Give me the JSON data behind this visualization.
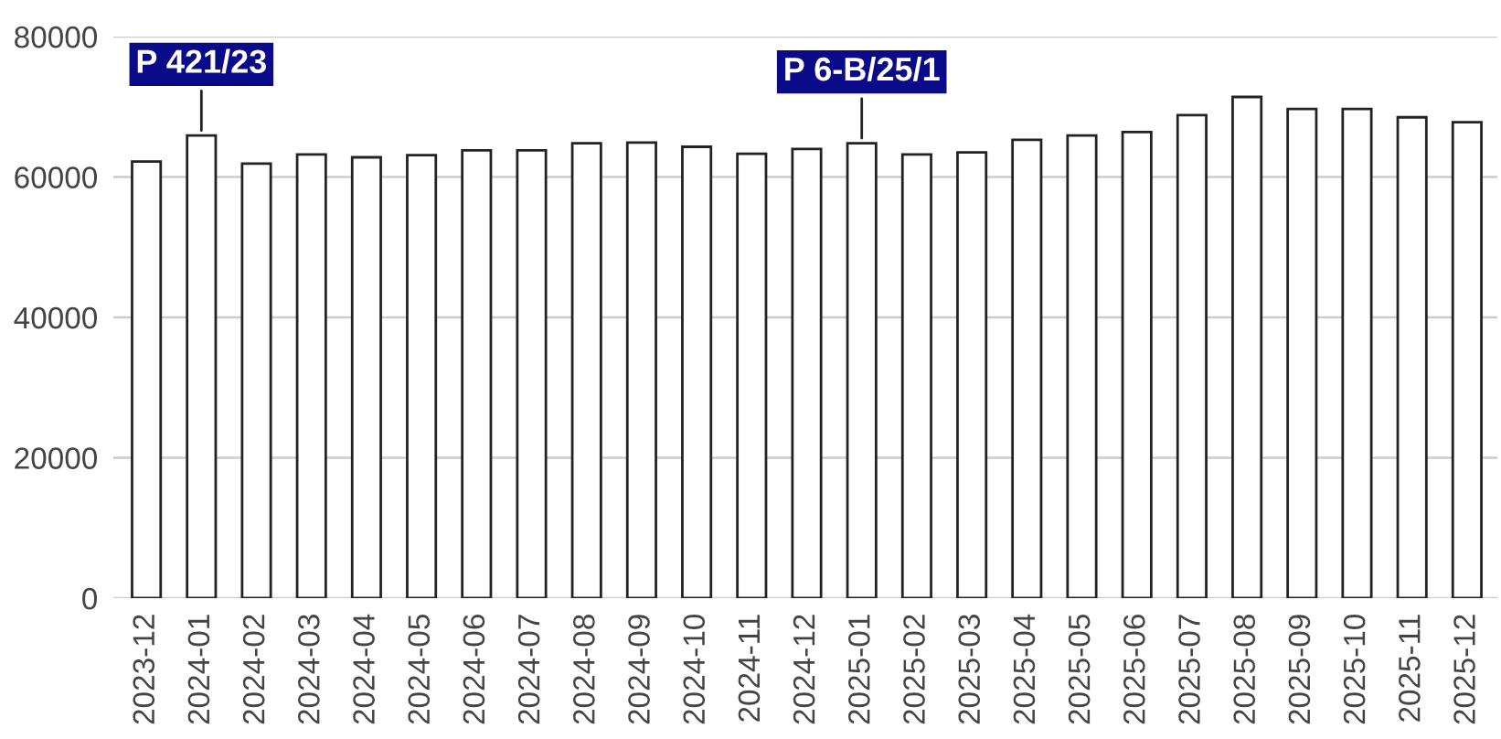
{
  "chart_data": {
    "type": "bar",
    "categories": [
      "2023-12",
      "2024-01",
      "2024-02",
      "2024-03",
      "2024-04",
      "2024-05",
      "2024-06",
      "2024-07",
      "2024-08",
      "2024-09",
      "2024-10",
      "2024-11",
      "2024-12",
      "2025-01",
      "2025-02",
      "2025-03",
      "2025-04",
      "2025-05",
      "2025-06",
      "2025-07",
      "2025-08",
      "2025-09",
      "2025-10",
      "2025-11",
      "2025-12"
    ],
    "values": [
      62200,
      65900,
      61900,
      63200,
      62800,
      63100,
      63800,
      63800,
      64800,
      64900,
      64300,
      63300,
      64000,
      64800,
      63200,
      63500,
      65300,
      65900,
      66400,
      68800,
      71400,
      69700,
      69700,
      68500,
      67800
    ],
    "color": "#ffffff",
    "ylim": [
      0,
      80000
    ],
    "yticks": [
      0,
      20000,
      40000,
      60000,
      80000
    ],
    "grid": "y",
    "annotations": [
      {
        "text": "P 421/23",
        "x": "2024-01",
        "y": 65900
      },
      {
        "text": "P 6-B/25/1",
        "x": "2025-01",
        "y": 64800
      }
    ]
  }
}
